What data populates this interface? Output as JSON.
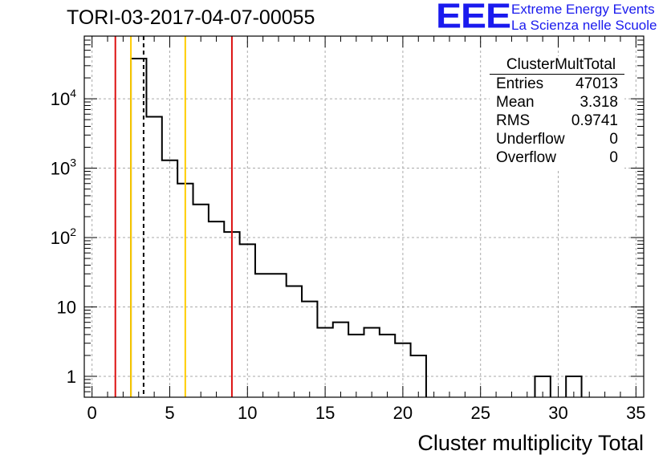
{
  "title": "TORI-03-2017-04-07-00055",
  "logo": {
    "mark": "EEE",
    "line1": "Extreme Energy Events",
    "line2": "La Scienza nelle Scuole"
  },
  "stats": {
    "name": "ClusterMultTotal",
    "rows": [
      {
        "key": "Entries",
        "value": "47013"
      },
      {
        "key": "Mean",
        "value": "3.318"
      },
      {
        "key": "RMS",
        "value": "0.9741"
      },
      {
        "key": "Underflow",
        "value": "0"
      },
      {
        "key": "Overflow",
        "value": "0"
      }
    ]
  },
  "colors": {
    "red_line": "#dd1111",
    "yellow_line": "#ffcc00",
    "histogram": "#000000",
    "grid": "#aaaaaa",
    "logo": "#1a1aee"
  },
  "chart_data": {
    "type": "bar",
    "subtype": "histogram-step",
    "xlabel": "Cluster multiplicity Total",
    "ylabel": "",
    "xlim": [
      -0.5,
      35.5
    ],
    "ylim": [
      0.5,
      80000
    ],
    "yscale": "log",
    "grid": true,
    "x_ticks": [
      0,
      5,
      10,
      15,
      20,
      25,
      30,
      35
    ],
    "y_ticks": [
      {
        "value": 1,
        "label": "1"
      },
      {
        "value": 10,
        "label": "10"
      },
      {
        "value": 100,
        "label": "10^2"
      },
      {
        "value": 1000,
        "label": "10^3"
      },
      {
        "value": 10000,
        "label": "10^4"
      }
    ],
    "bin_width": 1,
    "bins": [
      {
        "center": 3,
        "count": 38000
      },
      {
        "center": 4,
        "count": 5500
      },
      {
        "center": 5,
        "count": 1300
      },
      {
        "center": 6,
        "count": 600
      },
      {
        "center": 7,
        "count": 300
      },
      {
        "center": 8,
        "count": 170
      },
      {
        "center": 9,
        "count": 120
      },
      {
        "center": 10,
        "count": 80
      },
      {
        "center": 11,
        "count": 30
      },
      {
        "center": 12,
        "count": 30
      },
      {
        "center": 13,
        "count": 20
      },
      {
        "center": 14,
        "count": 12
      },
      {
        "center": 15,
        "count": 5
      },
      {
        "center": 16,
        "count": 6
      },
      {
        "center": 17,
        "count": 4
      },
      {
        "center": 18,
        "count": 5
      },
      {
        "center": 19,
        "count": 4
      },
      {
        "center": 20,
        "count": 3
      },
      {
        "center": 21,
        "count": 2
      },
      {
        "center": 29,
        "count": 1
      },
      {
        "center": 31,
        "count": 1
      }
    ],
    "vertical_lines": [
      {
        "x": 1.5,
        "style": "solid",
        "color": "red"
      },
      {
        "x": 2.5,
        "style": "solid",
        "color": "yellow"
      },
      {
        "x": 3.318,
        "style": "dashed",
        "color": "black"
      },
      {
        "x": 6.0,
        "style": "solid",
        "color": "yellow"
      },
      {
        "x": 9.0,
        "style": "solid",
        "color": "red"
      }
    ]
  }
}
